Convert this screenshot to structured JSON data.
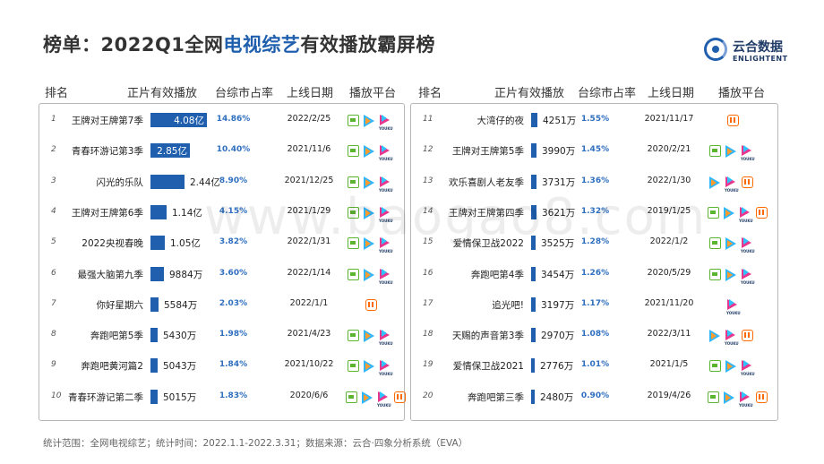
{
  "title": {
    "prefix": "榜单：2022Q1全网",
    "highlight": "电视综艺",
    "suffix": "有效播放霸屏榜"
  },
  "logo": {
    "cn": "云合数据",
    "en": "ENLIGHTENT"
  },
  "headers": {
    "rank": "排名",
    "plays": "正片有效播放",
    "share": "台综市占率",
    "date": "上线日期",
    "platform": "播放平台"
  },
  "chart_data": {
    "type": "bar",
    "title": "榜单：2022Q1全网电视综艺有效播放霸屏榜",
    "unit_note": "正片有效播放",
    "rows": [
      {
        "rank": "1",
        "name": "王牌对王牌第7季",
        "value": 40800,
        "label": "4.08亿",
        "share": "14.86%",
        "date": "2022/2/25",
        "platforms": [
          "iqiyi",
          "tencent",
          "youku"
        ]
      },
      {
        "rank": "2",
        "name": "青春环游记第3季",
        "value": 28500,
        "label": "2.85亿",
        "share": "10.40%",
        "date": "2021/11/6",
        "platforms": [
          "iqiyi",
          "tencent",
          "youku"
        ]
      },
      {
        "rank": "3",
        "name": "闪光的乐队",
        "value": 24400,
        "label": "2.44亿",
        "share": "8.90%",
        "date": "2021/12/25",
        "platforms": [
          "iqiyi",
          "tencent",
          "youku"
        ]
      },
      {
        "rank": "4",
        "name": "王牌对王牌第6季",
        "value": 11400,
        "label": "1.14亿",
        "share": "4.15%",
        "date": "2021/1/29",
        "platforms": [
          "iqiyi",
          "tencent",
          "youku"
        ]
      },
      {
        "rank": "5",
        "name": "2022央视春晚",
        "value": 10500,
        "label": "1.05亿",
        "share": "3.82%",
        "date": "2022/1/31",
        "platforms": [
          "iqiyi",
          "tencent",
          "youku"
        ]
      },
      {
        "rank": "6",
        "name": "最强大脑第九季",
        "value": 9884,
        "label": "9884万",
        "share": "3.60%",
        "date": "2022/1/14",
        "platforms": [
          "iqiyi",
          "tencent",
          "youku"
        ]
      },
      {
        "rank": "7",
        "name": "你好星期六",
        "value": 5584,
        "label": "5584万",
        "share": "2.03%",
        "date": "2022/1/1",
        "platforms": [
          "mango"
        ]
      },
      {
        "rank": "8",
        "name": "奔跑吧第5季",
        "value": 5430,
        "label": "5430万",
        "share": "1.98%",
        "date": "2021/4/23",
        "platforms": [
          "iqiyi",
          "tencent",
          "youku"
        ]
      },
      {
        "rank": "9",
        "name": "奔跑吧黄河篇2",
        "value": 5043,
        "label": "5043万",
        "share": "1.84%",
        "date": "2021/10/22",
        "platforms": [
          "iqiyi",
          "tencent",
          "youku"
        ]
      },
      {
        "rank": "10",
        "name": "青春环游记第二季",
        "value": 5015,
        "label": "5015万",
        "share": "1.83%",
        "date": "2020/6/6",
        "platforms": [
          "iqiyi",
          "tencent",
          "youku",
          "mango"
        ]
      },
      {
        "rank": "11",
        "name": "大湾仔的夜",
        "value": 4251,
        "label": "4251万",
        "share": "1.55%",
        "date": "2021/11/17",
        "platforms": [
          "mango"
        ]
      },
      {
        "rank": "12",
        "name": "王牌对王牌第5季",
        "value": 3990,
        "label": "3990万",
        "share": "1.45%",
        "date": "2020/2/21",
        "platforms": [
          "iqiyi",
          "tencent",
          "youku"
        ]
      },
      {
        "rank": "13",
        "name": "欢乐喜剧人老友季",
        "value": 3731,
        "label": "3731万",
        "share": "1.36%",
        "date": "2022/1/30",
        "platforms": [
          "tencent",
          "youku",
          "mango"
        ]
      },
      {
        "rank": "14",
        "name": "王牌对王牌第四季",
        "value": 3621,
        "label": "3621万",
        "share": "1.32%",
        "date": "2019/1/25",
        "platforms": [
          "iqiyi",
          "tencent",
          "youku",
          "mango"
        ]
      },
      {
        "rank": "15",
        "name": "爱情保卫战2022",
        "value": 3525,
        "label": "3525万",
        "share": "1.28%",
        "date": "2022/1/2",
        "platforms": [
          "iqiyi",
          "tencent",
          "youku"
        ]
      },
      {
        "rank": "16",
        "name": "奔跑吧第4季",
        "value": 3454,
        "label": "3454万",
        "share": "1.26%",
        "date": "2020/5/29",
        "platforms": [
          "iqiyi",
          "tencent",
          "youku"
        ]
      },
      {
        "rank": "17",
        "name": "追光吧!",
        "value": 3197,
        "label": "3197万",
        "share": "1.17%",
        "date": "2021/11/20",
        "platforms": [
          "youku"
        ]
      },
      {
        "rank": "18",
        "name": "天赐的声音第3季",
        "value": 2970,
        "label": "2970万",
        "share": "1.08%",
        "date": "2022/3/11",
        "platforms": [
          "tencent",
          "youku",
          "mango"
        ]
      },
      {
        "rank": "19",
        "name": "爱情保卫战2021",
        "value": 2776,
        "label": "2776万",
        "share": "1.01%",
        "date": "2021/1/5",
        "platforms": [
          "iqiyi",
          "tencent",
          "youku"
        ]
      },
      {
        "rank": "20",
        "name": "奔跑吧第三季",
        "value": 2480,
        "label": "2480万",
        "share": "0.90%",
        "date": "2019/4/26",
        "platforms": [
          "iqiyi",
          "tencent",
          "youku",
          "mango"
        ]
      }
    ]
  },
  "footer": "统计范围：全网电视综艺；统计时间：2022.1.1-2022.3.31；数据来源：云合·四象分析系统（EVA）",
  "watermark": "www.baogao8.com"
}
